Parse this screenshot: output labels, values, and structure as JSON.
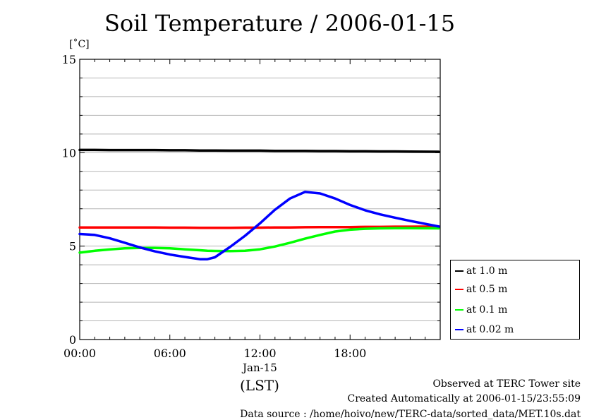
{
  "chart_data": {
    "type": "line",
    "title": "Soil Temperature / 2006-01-15",
    "ylabel": "[˚C]",
    "xlabel": "(LST)",
    "x_date_label": "Jan-15",
    "ylim": [
      0,
      15
    ],
    "xlim": [
      0,
      24
    ],
    "y_ticks": [
      0,
      5,
      10,
      15
    ],
    "x_ticks": [
      {
        "value": 0,
        "label": "00:00"
      },
      {
        "value": 6,
        "label": "06:00"
      },
      {
        "value": 12,
        "label": "12:00"
      },
      {
        "value": 18,
        "label": "18:00"
      }
    ],
    "grid": true,
    "legend_placement": "bottom-right outside",
    "x": [
      0,
      1,
      2,
      3,
      4,
      5,
      6,
      7,
      8,
      8.5,
      9,
      10,
      11,
      12,
      13,
      14,
      15,
      16,
      17,
      18,
      19,
      20,
      21,
      22,
      23.9
    ],
    "series": [
      {
        "name": "at 1.0 m",
        "color": "#000000",
        "values": [
          10.15,
          10.15,
          10.14,
          10.14,
          10.14,
          10.14,
          10.13,
          10.13,
          10.12,
          10.12,
          10.12,
          10.11,
          10.11,
          10.11,
          10.1,
          10.1,
          10.1,
          10.09,
          10.09,
          10.08,
          10.08,
          10.07,
          10.07,
          10.06,
          10.05
        ]
      },
      {
        "name": "at 0.5 m",
        "color": "#ff0000",
        "values": [
          6.0,
          6.0,
          6.0,
          6.0,
          6.0,
          6.0,
          5.99,
          5.99,
          5.98,
          5.98,
          5.98,
          5.98,
          5.99,
          5.99,
          6.0,
          6.0,
          6.01,
          6.02,
          6.02,
          6.02,
          6.03,
          6.03,
          6.04,
          6.04,
          6.05
        ]
      },
      {
        "name": "at 0.1 m",
        "color": "#00ff00",
        "values": [
          4.65,
          4.75,
          4.82,
          4.88,
          4.9,
          4.9,
          4.88,
          4.83,
          4.78,
          4.75,
          4.74,
          4.73,
          4.75,
          4.83,
          4.98,
          5.18,
          5.4,
          5.6,
          5.78,
          5.88,
          5.93,
          5.95,
          5.96,
          5.96,
          5.95
        ]
      },
      {
        "name": "at 0.02 m",
        "color": "#0000ff",
        "values": [
          5.65,
          5.6,
          5.42,
          5.18,
          4.93,
          4.72,
          4.55,
          4.42,
          4.3,
          4.3,
          4.4,
          4.95,
          5.55,
          6.22,
          6.95,
          7.55,
          7.9,
          7.82,
          7.55,
          7.2,
          6.92,
          6.7,
          6.52,
          6.35,
          6.05
        ]
      }
    ]
  },
  "footer": {
    "observed": "Observed at TERC Tower site",
    "created": "Created Automatically at 2006-01-15/23:55:09",
    "source": "Data source : /home/hoivo/new/TERC-data/sorted_data/MET.10s.dat"
  }
}
